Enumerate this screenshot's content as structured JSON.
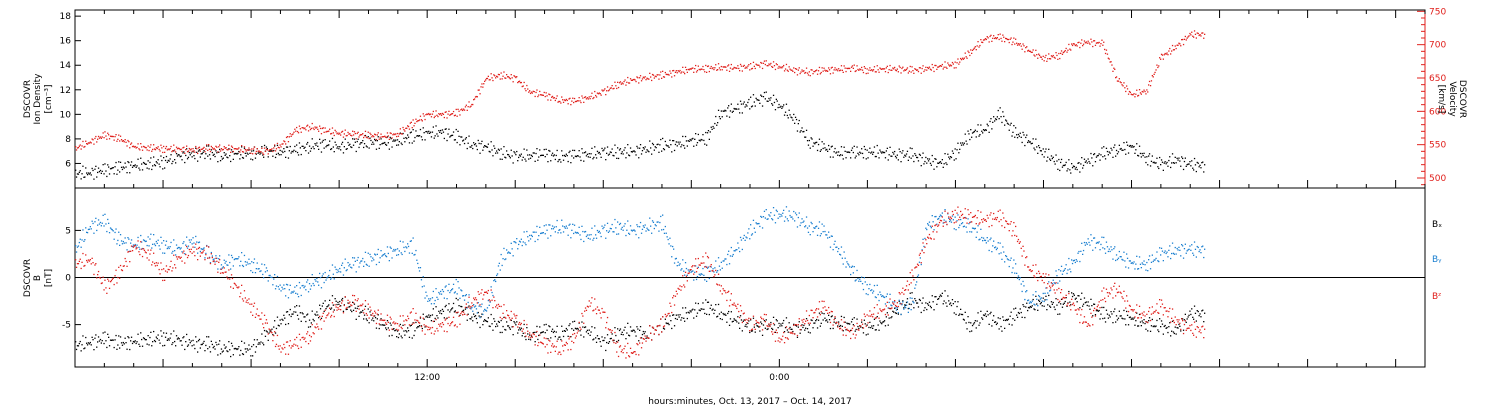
{
  "colors": {
    "black": "#000000",
    "red": "#e0201c",
    "blue": "#1a7fd0"
  },
  "chart_data": [
    {
      "type": "scatter",
      "panel": "top",
      "ylabel_left": [
        "DSCOVR",
        "Ion Density",
        "[cm⁻³]"
      ],
      "ylabel_right": [
        "DSCOVR",
        "Velocity",
        "[km/s]"
      ],
      "ylim_left": [
        4.0,
        18.5
      ],
      "ylim_right": [
        485,
        752
      ],
      "yticks_left": [
        6,
        8,
        10,
        12,
        14,
        16,
        18
      ],
      "yticks_right": [
        500,
        550,
        600,
        650,
        700,
        750
      ],
      "series": [
        {
          "axis": "left",
          "color": "black",
          "x": [
            0.0,
            0.5,
            1.0,
            1.5,
            2.0,
            2.5,
            3.0,
            3.5,
            4.0,
            4.5,
            5.0,
            5.5,
            6.0,
            6.5,
            7.0,
            7.5,
            8.0,
            8.5,
            9.0,
            9.5,
            10.0,
            10.5,
            11.0,
            11.5,
            12.0,
            12.5,
            13.0,
            13.5,
            14.0,
            14.5,
            15.0,
            15.5,
            16.0,
            16.5,
            17.0,
            17.5,
            18.0,
            18.5,
            19.0,
            19.5,
            20.0,
            20.5,
            21.0,
            21.5,
            22.0,
            22.5,
            23.0,
            23.5,
            24.0,
            24.5,
            25.0,
            25.5,
            26.0,
            26.5,
            27.0,
            27.5,
            28.0,
            28.5,
            29.0,
            29.5,
            30.0,
            30.5,
            31.0,
            31.5,
            32.0,
            32.5,
            33.0,
            33.5,
            34.0,
            34.5,
            35.0,
            35.5,
            36.0,
            36.5,
            37.0,
            37.5,
            38.0
          ],
          "y": [
            5.2,
            5.3,
            5.5,
            5.7,
            5.9,
            6.0,
            6.2,
            6.6,
            6.8,
            6.9,
            6.7,
            6.8,
            6.9,
            7.0,
            7.0,
            7.1,
            7.5,
            7.6,
            7.4,
            7.6,
            7.8,
            7.7,
            7.9,
            8.3,
            8.5,
            8.6,
            8.2,
            7.6,
            7.4,
            6.9,
            6.6,
            6.7,
            6.8,
            6.6,
            6.7,
            6.8,
            6.9,
            7.0,
            7.0,
            7.3,
            7.5,
            7.6,
            7.9,
            8.1,
            10.2,
            10.5,
            11.0,
            11.4,
            10.8,
            9.6,
            7.9,
            7.3,
            6.9,
            6.9,
            7.0,
            6.9,
            6.8,
            6.7,
            6.3,
            6.0,
            7.0,
            8.5,
            8.8,
            10.1,
            8.5,
            7.9,
            6.9,
            6.1,
            5.6,
            6.3,
            6.8,
            7.2,
            7.4,
            6.5,
            5.9,
            6.4,
            5.9
          ]
        },
        {
          "axis": "right",
          "color": "red",
          "x": [
            0.0,
            0.5,
            1.0,
            1.5,
            2.0,
            2.5,
            3.0,
            3.5,
            4.0,
            4.5,
            5.0,
            5.5,
            6.0,
            6.5,
            7.0,
            7.5,
            8.0,
            8.5,
            9.0,
            9.5,
            10.0,
            10.5,
            11.0,
            11.5,
            12.0,
            12.5,
            13.0,
            13.5,
            14.0,
            14.5,
            15.0,
            15.5,
            16.0,
            16.5,
            17.0,
            17.5,
            18.0,
            18.5,
            19.0,
            19.5,
            20.0,
            20.5,
            21.0,
            21.5,
            22.0,
            22.5,
            23.0,
            23.5,
            24.0,
            24.5,
            25.0,
            25.5,
            26.0,
            26.5,
            27.0,
            27.5,
            28.0,
            28.5,
            29.0,
            29.5,
            30.0,
            30.5,
            31.0,
            31.5,
            32.0,
            32.5,
            33.0,
            33.5,
            34.0,
            34.5,
            35.0,
            35.5,
            36.0,
            36.5,
            37.0,
            37.5,
            38.0
          ],
          "y": [
            545,
            555,
            565,
            560,
            548,
            546,
            545,
            544,
            543,
            545,
            546,
            544,
            543,
            540,
            550,
            572,
            578,
            572,
            568,
            566,
            565,
            563,
            567,
            583,
            596,
            596,
            598,
            612,
            650,
            655,
            650,
            630,
            625,
            618,
            616,
            622,
            630,
            642,
            648,
            652,
            655,
            660,
            664,
            665,
            667,
            666,
            668,
            672,
            668,
            662,
            660,
            662,
            664,
            665,
            663,
            664,
            665,
            662,
            665,
            668,
            672,
            690,
            710,
            712,
            705,
            692,
            680,
            685,
            700,
            705,
            702,
            650,
            625,
            632,
            682,
            698,
            716
          ]
        }
      ]
    },
    {
      "type": "scatter",
      "panel": "bottom",
      "ylabel": [
        "DSCOVR",
        "B",
        "[nT]"
      ],
      "ylim": [
        -9.5,
        9.5
      ],
      "yticks": [
        -5,
        0,
        5
      ],
      "zero_line": true,
      "legend": [
        "Bₓ",
        "Bᵧ",
        "Bᶻ"
      ],
      "series": [
        {
          "name": "Bx",
          "color": "black",
          "x": [
            0.0,
            0.5,
            1.0,
            1.5,
            2.0,
            2.5,
            3.0,
            3.5,
            4.0,
            4.5,
            5.0,
            5.5,
            6.0,
            6.5,
            7.0,
            7.5,
            8.0,
            8.5,
            9.0,
            9.5,
            10.0,
            10.5,
            11.0,
            11.5,
            12.0,
            12.5,
            13.0,
            13.5,
            14.0,
            14.5,
            15.0,
            15.5,
            16.0,
            16.5,
            17.0,
            17.5,
            18.0,
            18.5,
            19.0,
            19.5,
            20.0,
            20.5,
            21.0,
            21.5,
            22.0,
            22.5,
            23.0,
            23.5,
            24.0,
            24.5,
            25.0,
            25.5,
            26.0,
            26.5,
            27.0,
            27.5,
            28.0,
            28.5,
            29.0,
            29.5,
            30.0,
            30.5,
            31.0,
            31.5,
            32.0,
            32.5,
            33.0,
            33.5,
            34.0,
            34.5,
            35.0,
            35.5,
            36.0,
            36.5,
            37.0,
            37.5,
            38.0
          ],
          "y": [
            -7.2,
            -6.8,
            -6.5,
            -6.9,
            -6.7,
            -6.5,
            -6.3,
            -6.6,
            -6.9,
            -7.1,
            -7.4,
            -7.6,
            -7.5,
            -6.2,
            -4.5,
            -3.5,
            -4.5,
            -3.0,
            -2.5,
            -3.4,
            -4.0,
            -5.0,
            -5.8,
            -5.5,
            -4.2,
            -3.6,
            -3.0,
            -4.0,
            -4.6,
            -5.0,
            -5.2,
            -6.2,
            -5.5,
            -5.9,
            -5.2,
            -5.6,
            -7.0,
            -5.8,
            -5.6,
            -6.0,
            -5.0,
            -4.2,
            -3.6,
            -3.0,
            -3.8,
            -4.5,
            -5.1,
            -5.2,
            -4.8,
            -5.5,
            -5.0,
            -4.3,
            -4.8,
            -5.0,
            -5.2,
            -4.8,
            -3.2,
            -2.4,
            -3.0,
            -2.0,
            -3.0,
            -5.2,
            -3.8,
            -5.0,
            -4.0,
            -3.0,
            -2.5,
            -3.0,
            -2.0,
            -2.7,
            -4.0,
            -3.9,
            -4.4,
            -4.8,
            -5.2,
            -5.5,
            -3.8
          ]
        },
        {
          "name": "By",
          "color": "blue",
          "x": [
            0.0,
            0.5,
            1.0,
            1.5,
            2.0,
            2.5,
            3.0,
            3.5,
            4.0,
            4.5,
            5.0,
            5.5,
            6.0,
            6.5,
            7.0,
            7.5,
            8.0,
            8.5,
            9.0,
            9.5,
            10.0,
            10.5,
            11.0,
            11.5,
            12.0,
            12.5,
            13.0,
            13.5,
            14.0,
            14.5,
            15.0,
            15.5,
            16.0,
            16.5,
            17.0,
            17.5,
            18.0,
            18.5,
            19.0,
            19.5,
            20.0,
            20.5,
            21.0,
            21.5,
            22.0,
            22.5,
            23.0,
            23.5,
            24.0,
            24.5,
            25.0,
            25.5,
            26.0,
            26.5,
            27.0,
            27.5,
            28.0,
            28.5,
            29.0,
            29.5,
            30.0,
            30.5,
            31.0,
            31.5,
            32.0,
            32.5,
            33.0,
            33.5,
            34.0,
            34.5,
            35.0,
            35.5,
            36.0,
            36.5,
            37.0,
            37.5,
            38.0
          ],
          "y": [
            3.0,
            5.5,
            6.0,
            4.0,
            3.5,
            4.0,
            3.5,
            3.0,
            4.0,
            2.5,
            1.5,
            2.0,
            1.5,
            0.5,
            -1.0,
            -1.5,
            -0.5,
            0.0,
            1.0,
            1.5,
            2.0,
            2.5,
            3.0,
            3.5,
            -2.5,
            -1.5,
            -1.0,
            -3.0,
            -3.5,
            2.0,
            3.5,
            4.5,
            5.0,
            5.5,
            5.0,
            4.5,
            5.0,
            5.5,
            5.0,
            5.5,
            5.8,
            1.5,
            0.5,
            0.5,
            1.5,
            3.0,
            5.0,
            6.5,
            6.8,
            6.5,
            5.5,
            5.0,
            3.0,
            0.5,
            -1.0,
            -2.0,
            -3.0,
            -3.0,
            5.5,
            6.5,
            6.0,
            5.5,
            4.0,
            3.0,
            1.0,
            -2.5,
            -2.0,
            0.5,
            1.5,
            4.0,
            3.5,
            2.5,
            1.5,
            1.5,
            2.5,
            3.0,
            3.0
          ]
        },
        {
          "name": "Bz",
          "color": "red",
          "x": [
            0.0,
            0.5,
            1.0,
            1.5,
            2.0,
            2.5,
            3.0,
            3.5,
            4.0,
            4.5,
            5.0,
            5.5,
            6.0,
            6.5,
            7.0,
            7.5,
            8.0,
            8.5,
            9.0,
            9.5,
            10.0,
            10.5,
            11.0,
            11.5,
            12.0,
            12.5,
            13.0,
            13.5,
            14.0,
            14.5,
            15.0,
            15.5,
            16.0,
            16.5,
            17.0,
            17.5,
            18.0,
            18.5,
            19.0,
            19.5,
            20.0,
            20.5,
            21.0,
            21.5,
            22.0,
            22.5,
            23.0,
            23.5,
            24.0,
            24.5,
            25.0,
            25.5,
            26.0,
            26.5,
            27.0,
            27.5,
            28.0,
            28.5,
            29.0,
            29.5,
            30.0,
            30.5,
            31.0,
            31.5,
            32.0,
            32.5,
            33.0,
            33.5,
            34.0,
            34.5,
            35.0,
            35.5,
            36.0,
            36.5,
            37.0,
            37.5,
            38.0
          ],
          "y": [
            1.5,
            2.0,
            -1.0,
            0.5,
            3.5,
            2.5,
            0.5,
            2.0,
            3.0,
            2.5,
            1.0,
            -1.0,
            -3.0,
            -5.0,
            -7.5,
            -7.0,
            -6.0,
            -4.0,
            -3.0,
            -2.5,
            -3.5,
            -4.5,
            -5.0,
            -4.0,
            -5.5,
            -5.0,
            -4.5,
            -2.5,
            -1.5,
            -3.5,
            -4.5,
            -6.0,
            -7.0,
            -7.5,
            -6.5,
            -2.5,
            -4.0,
            -7.5,
            -8.0,
            -6.0,
            -5.0,
            -1.5,
            1.0,
            2.0,
            -1.0,
            -3.0,
            -5.0,
            -4.5,
            -6.5,
            -5.5,
            -4.0,
            -3.0,
            -5.0,
            -6.0,
            -4.0,
            -3.5,
            -2.5,
            0.0,
            4.0,
            6.0,
            6.8,
            6.5,
            6.2,
            6.5,
            5.0,
            1.0,
            0.0,
            -1.5,
            -3.0,
            -5.0,
            -2.0,
            -1.0,
            -3.5,
            -4.0,
            -3.0,
            -4.5,
            -5.5
          ]
        }
      ]
    }
  ],
  "time_axis": {
    "tick_labels": [
      {
        "x": 12,
        "label": "12:00"
      },
      {
        "x": 24,
        "label": "0:00"
      }
    ],
    "xlabel": "hours:minutes, Oct. 13, 2017 – Oct. 14, 2017"
  }
}
